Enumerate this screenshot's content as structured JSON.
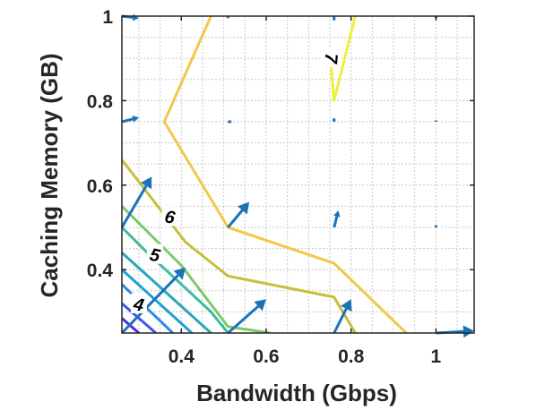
{
  "chart_data": {
    "type": "contour",
    "xlabel": "Bandwidth (Gbps)",
    "ylabel": "Caching Memory (GB)",
    "xlim": [
      0.26,
      1.09
    ],
    "ylim": [
      0.25,
      1.0
    ],
    "xticks": [
      0.4,
      0.6,
      0.8,
      1.0
    ],
    "xtick_labels": [
      "0.4",
      "0.6",
      "0.8",
      "1"
    ],
    "yticks": [
      0.4,
      0.6,
      0.8,
      1.0
    ],
    "ytick_labels": [
      "0.4",
      "0.6",
      "0.8",
      "1"
    ],
    "grid": "on (dotted minor grid)",
    "contours": [
      {
        "level": 7,
        "label": "7",
        "label_at": [
          0.754,
          0.9
        ],
        "color": "#eef03a",
        "points": [
          [
            0.75,
            0.92
          ],
          [
            0.76,
            0.8
          ],
          [
            0.81,
            1.0
          ]
        ]
      },
      {
        "level": 6.5,
        "label": "",
        "color": "#f2c84a",
        "points": [
          [
            0.47,
            1.0
          ],
          [
            0.36,
            0.75
          ],
          [
            0.51,
            0.5
          ],
          [
            0.76,
            0.415
          ],
          [
            0.93,
            0.25
          ]
        ]
      },
      {
        "level": 6,
        "label": "6",
        "label_at": [
          0.373,
          0.525
        ],
        "color": "#c6bf3c",
        "points": [
          [
            0.26,
            0.66
          ],
          [
            0.41,
            0.465
          ],
          [
            0.51,
            0.385
          ],
          [
            0.76,
            0.335
          ],
          [
            0.81,
            0.25
          ]
        ]
      },
      {
        "level": 5.5,
        "label": "",
        "color": "#7dc86a",
        "points": [
          [
            0.26,
            0.55
          ],
          [
            0.4,
            0.41
          ],
          [
            0.51,
            0.265
          ],
          [
            0.61,
            0.25
          ]
        ]
      },
      {
        "level": 5,
        "label": "5",
        "label_at": [
          0.338,
          0.435
        ],
        "color": "#3fbba0",
        "points": [
          [
            0.26,
            0.5
          ],
          [
            0.32,
            0.44
          ],
          [
            0.47,
            0.3
          ],
          [
            0.51,
            0.25
          ]
        ]
      },
      {
        "level": 4.75,
        "label": "",
        "color": "#2aa8b8",
        "points": [
          [
            0.26,
            0.44
          ],
          [
            0.47,
            0.25
          ]
        ]
      },
      {
        "level": 4.5,
        "label": "",
        "color": "#1ea0d8",
        "points": [
          [
            0.26,
            0.4
          ],
          [
            0.425,
            0.25
          ]
        ]
      },
      {
        "level": 4.25,
        "label": "",
        "color": "#2e88e8",
        "points": [
          [
            0.26,
            0.365
          ],
          [
            0.38,
            0.25
          ]
        ]
      },
      {
        "level": 4,
        "label": "4",
        "label_at": [
          0.3,
          0.318
        ],
        "color": "#3f55e8",
        "points": [
          [
            0.26,
            0.32
          ],
          [
            0.34,
            0.25
          ]
        ]
      },
      {
        "level": 3.75,
        "label": "",
        "color": "#4a2fd8",
        "points": [
          [
            0.26,
            0.285
          ],
          [
            0.3,
            0.25
          ]
        ]
      }
    ],
    "quiver": [
      {
        "x": 0.26,
        "y": 1.0,
        "u": 0.04,
        "v": -0.005
      },
      {
        "x": 0.51,
        "y": 1.0,
        "u": 0.0,
        "v": -0.005
      },
      {
        "x": 0.76,
        "y": 1.0,
        "u": 0.0,
        "v": -0.01
      },
      {
        "x": 1.0,
        "y": 1.0,
        "u": 0.0,
        "v": -0.005
      },
      {
        "x": 0.26,
        "y": 0.75,
        "u": 0.04,
        "v": 0.01
      },
      {
        "x": 0.51,
        "y": 0.75,
        "u": 0.008,
        "v": 0.0
      },
      {
        "x": 0.76,
        "y": 0.75,
        "u": 0.0,
        "v": 0.008
      },
      {
        "x": 1.0,
        "y": 0.75,
        "u": 0.0,
        "v": 0.003
      },
      {
        "x": 0.26,
        "y": 0.5,
        "u": 0.07,
        "v": 0.12
      },
      {
        "x": 0.51,
        "y": 0.5,
        "u": 0.05,
        "v": 0.06
      },
      {
        "x": 0.76,
        "y": 0.5,
        "u": 0.01,
        "v": 0.04
      },
      {
        "x": 1.0,
        "y": 0.5,
        "u": 0.0,
        "v": 0.005
      },
      {
        "x": 0.26,
        "y": 0.25,
        "u": 0.15,
        "v": 0.155
      },
      {
        "x": 0.51,
        "y": 0.25,
        "u": 0.09,
        "v": 0.08
      },
      {
        "x": 0.76,
        "y": 0.25,
        "u": 0.04,
        "v": 0.08
      },
      {
        "x": 1.0,
        "y": 0.25,
        "u": 0.09,
        "v": 0.005
      }
    ],
    "colors": {
      "arrow": "#1a73b8",
      "grid": "#c8c8c8",
      "axis": "#262626"
    }
  }
}
